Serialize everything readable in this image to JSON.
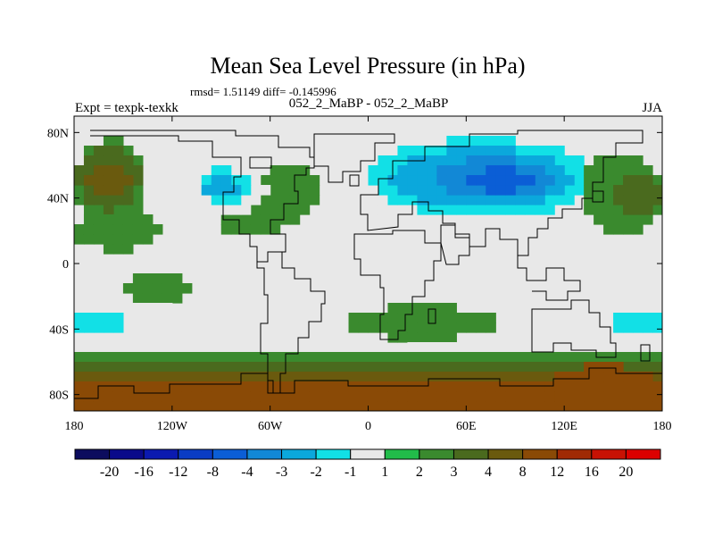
{
  "chart_data": {
    "type": "heatmap",
    "title": "Mean Sea Level Pressure (in hPa)",
    "stats": "rmsd= 1.51149 diff= -0.145996",
    "left_label": "Expt = texpk-texkk",
    "center_label": "052_2_MaBP - 052_2_MaBP",
    "right_label": "JJA",
    "x_ticks": [
      {
        "value": -180,
        "label": "180"
      },
      {
        "value": -120,
        "label": "120W"
      },
      {
        "value": -60,
        "label": "60W"
      },
      {
        "value": 0,
        "label": "0"
      },
      {
        "value": 60,
        "label": "60E"
      },
      {
        "value": 120,
        "label": "120E"
      },
      {
        "value": 180,
        "label": "180"
      }
    ],
    "y_ticks": [
      {
        "value": 80,
        "label": "80N"
      },
      {
        "value": 40,
        "label": "40N"
      },
      {
        "value": 0,
        "label": "0"
      },
      {
        "value": -40,
        "label": "40S"
      },
      {
        "value": -80,
        "label": "80S"
      }
    ],
    "xlim": [
      -180,
      180
    ],
    "ylim": [
      -90,
      90
    ],
    "colorbar": {
      "boundaries": [
        "-20",
        "-16",
        "-12",
        "-8",
        "-4",
        "-3",
        "-2",
        "-1",
        "1",
        "2",
        "3",
        "4",
        "8",
        "12",
        "16",
        "20"
      ],
      "colors": [
        "#0c0c5e",
        "#0a0a8a",
        "#0b1ab0",
        "#0a3cc4",
        "#0b5ed6",
        "#1288d6",
        "#0ba8dc",
        "#12e0e6",
        "#e8e8e8",
        "#22bc4a",
        "#3a8a2e",
        "#4a6a1e",
        "#6a5a0e",
        "#8a4a06",
        "#a02a04",
        "#c81204",
        "#dc0000"
      ]
    },
    "cell_deg": 6,
    "regions": [
      {
        "level": "2",
        "lon": [
          -180,
          -135
        ],
        "lat": [
          20,
          76
        ],
        "kind": "ellipse",
        "rot": 0
      },
      {
        "level": "3",
        "lon": [
          -178,
          -140
        ],
        "lat": [
          33,
          70
        ],
        "kind": "ellipse",
        "rot": 0
      },
      {
        "level": "4",
        "lon": [
          -172,
          -146
        ],
        "lat": [
          42,
          62
        ],
        "kind": "ellipse",
        "rot": 0
      },
      {
        "level": "2",
        "lon": [
          -180,
          -128
        ],
        "lat": [
          8,
          32
        ],
        "kind": "ellipse",
        "rot": 0
      },
      {
        "level": "2",
        "lon": [
          -92,
          -26
        ],
        "lat": [
          20,
          55
        ],
        "kind": "ellipse",
        "rot": -30
      },
      {
        "level": "-1",
        "lon": [
          -110,
          -62
        ],
        "lat": [
          30,
          62
        ],
        "kind": "ellipse",
        "rot": 0
      },
      {
        "level": "-2",
        "lon": [
          -104,
          -72
        ],
        "lat": [
          36,
          58
        ],
        "kind": "ellipse",
        "rot": 0
      },
      {
        "level": "-3",
        "lon": [
          -100,
          -80
        ],
        "lat": [
          40,
          54
        ],
        "kind": "ellipse",
        "rot": 0
      },
      {
        "level": "-1",
        "lon": [
          -20,
          154
        ],
        "lat": [
          14,
          84
        ],
        "kind": "ellipse",
        "rot": 0
      },
      {
        "level": "-2",
        "lon": [
          0,
          140
        ],
        "lat": [
          28,
          76
        ],
        "kind": "ellipse",
        "rot": 0
      },
      {
        "level": "-3",
        "lon": [
          14,
          124
        ],
        "lat": [
          34,
          70
        ],
        "kind": "ellipse",
        "rot": 0
      },
      {
        "level": "-4",
        "lon": [
          40,
          112
        ],
        "lat": [
          40,
          64
        ],
        "kind": "ellipse",
        "rot": 0
      },
      {
        "level": "-8",
        "lon": [
          58,
          104
        ],
        "lat": [
          44,
          58
        ],
        "kind": "ellipse",
        "rot": 0
      },
      {
        "level": "2",
        "lon": [
          130,
          180
        ],
        "lat": [
          18,
          68
        ],
        "kind": "ellipse",
        "rot": 0
      },
      {
        "level": "3",
        "lon": [
          150,
          180
        ],
        "lat": [
          30,
          56
        ],
        "kind": "ellipse",
        "rot": 0
      },
      {
        "level": "2",
        "lon": [
          -150,
          -110
        ],
        "lat": [
          -24,
          -6
        ],
        "kind": "ellipse",
        "rot": 0
      },
      {
        "level": "2",
        "lon": [
          -15,
          80
        ],
        "lat": [
          -46,
          -26
        ],
        "kind": "ellipse",
        "rot": 0
      },
      {
        "level": "-1",
        "lon": [
          -180,
          -115
        ],
        "lat": [
          -50,
          -22
        ],
        "kind": "ellipse",
        "rot": 0
      },
      {
        "level": "-2",
        "lon": [
          -180,
          -150
        ],
        "lat": [
          -44,
          -28
        ],
        "kind": "ellipse",
        "rot": 0
      },
      {
        "level": "-1",
        "lon": [
          10,
          68
        ],
        "lat": [
          -62,
          -50
        ],
        "kind": "ellipse",
        "rot": 0
      },
      {
        "level": "-1",
        "lon": [
          125,
          180
        ],
        "lat": [
          -50,
          -20
        ],
        "kind": "ellipse",
        "rot": 0
      },
      {
        "level": "-2",
        "lon": [
          150,
          180
        ],
        "lat": [
          -44,
          -28
        ],
        "kind": "ellipse",
        "rot": 0
      },
      {
        "level": "2",
        "lon": [
          -180,
          180
        ],
        "lat": [
          -90,
          -52
        ],
        "kind": "band",
        "rot": 0
      },
      {
        "level": "3",
        "lon": [
          -180,
          180
        ],
        "lat": [
          -90,
          -58
        ],
        "kind": "band",
        "rot": 0
      },
      {
        "level": "4",
        "lon": [
          -180,
          180
        ],
        "lat": [
          -90,
          -66
        ],
        "kind": "band",
        "rot": 0
      },
      {
        "level": "8",
        "lon": [
          -180,
          180
        ],
        "lat": [
          -90,
          -74
        ],
        "kind": "band",
        "rot": 0
      },
      {
        "level": "8",
        "lon": [
          110,
          178
        ],
        "lat": [
          -90,
          -62
        ],
        "kind": "ellipse",
        "rot": 0
      }
    ]
  }
}
